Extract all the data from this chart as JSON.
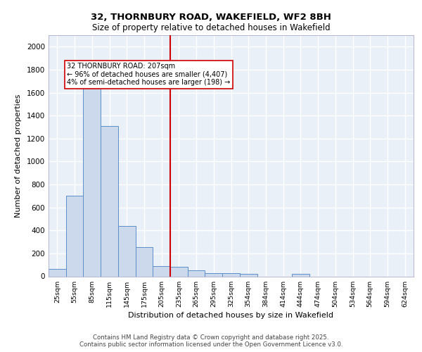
{
  "title_line1": "32, THORNBURY ROAD, WAKEFIELD, WF2 8BH",
  "title_line2": "Size of property relative to detached houses in Wakefield",
  "xlabel": "Distribution of detached houses by size in Wakefield",
  "ylabel": "Number of detached properties",
  "categories": [
    "25sqm",
    "55sqm",
    "85sqm",
    "115sqm",
    "145sqm",
    "175sqm",
    "205sqm",
    "235sqm",
    "265sqm",
    "295sqm",
    "325sqm",
    "354sqm",
    "384sqm",
    "414sqm",
    "444sqm",
    "474sqm",
    "504sqm",
    "534sqm",
    "564sqm",
    "594sqm",
    "624sqm"
  ],
  "values": [
    65,
    700,
    1650,
    1310,
    440,
    255,
    90,
    80,
    50,
    30,
    25,
    20,
    0,
    0,
    20,
    0,
    0,
    0,
    0,
    0,
    0
  ],
  "bar_color": "#ccd9ed",
  "bar_edge_color": "#5b8fc7",
  "red_line_x": 6.5,
  "annotation_text": "32 THORNBURY ROAD: 207sqm\n← 96% of detached houses are smaller (4,407)\n4% of semi-detached houses are larger (198) →",
  "annotation_box_color": "#ffffff",
  "annotation_box_edge": "#cc0000",
  "ylim": [
    0,
    2100
  ],
  "yticks": [
    0,
    200,
    400,
    600,
    800,
    1000,
    1200,
    1400,
    1600,
    1800,
    2000
  ],
  "background_color": "#eaf0f8",
  "grid_color": "#ffffff",
  "footer_line1": "Contains HM Land Registry data © Crown copyright and database right 2025.",
  "footer_line2": "Contains public sector information licensed under the Open Government Licence v3.0."
}
